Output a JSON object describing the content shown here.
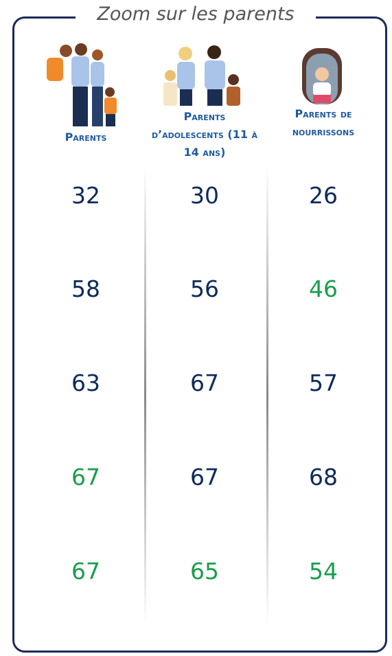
{
  "title": "Zoom sur les parents",
  "columns": [
    {
      "label": "Parents",
      "values": [
        32,
        58,
        63,
        67,
        67
      ],
      "colors": [
        "#0d2a5c",
        "#0d2a5c",
        "#0d2a5c",
        "#1a9e4a",
        "#1a9e4a"
      ]
    },
    {
      "label": "Parents d’adolescents (11 à 14 ans)",
      "values": [
        30,
        56,
        67,
        67,
        65
      ],
      "colors": [
        "#0d2a5c",
        "#0d2a5c",
        "#0d2a5c",
        "#0d2a5c",
        "#1a9e4a"
      ]
    },
    {
      "label": "Parents de nourrissons",
      "values": [
        26,
        46,
        57,
        68,
        54
      ],
      "colors": [
        "#0d2a5c",
        "#1a9e4a",
        "#0d2a5c",
        "#0d2a5c",
        "#1a9e4a"
      ]
    }
  ]
}
